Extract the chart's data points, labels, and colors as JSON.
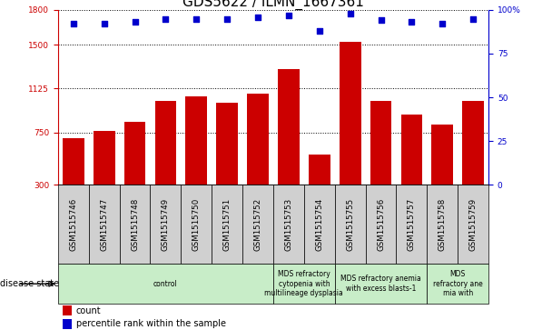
{
  "title": "GDS5622 / ILMN_1667361",
  "samples": [
    "GSM1515746",
    "GSM1515747",
    "GSM1515748",
    "GSM1515749",
    "GSM1515750",
    "GSM1515751",
    "GSM1515752",
    "GSM1515753",
    "GSM1515754",
    "GSM1515755",
    "GSM1515756",
    "GSM1515757",
    "GSM1515758",
    "GSM1515759"
  ],
  "counts": [
    700,
    760,
    840,
    1020,
    1060,
    1000,
    1080,
    1290,
    560,
    1530,
    1020,
    900,
    820,
    1020
  ],
  "percentiles": [
    92,
    92,
    93,
    95,
    95,
    95,
    96,
    97,
    88,
    98,
    94,
    93,
    92,
    95
  ],
  "bar_color": "#cc0000",
  "dot_color": "#0000cc",
  "ylim_left": [
    300,
    1800
  ],
  "yticks_left": [
    300,
    750,
    1125,
    1500,
    1800
  ],
  "ylim_right": [
    0,
    100
  ],
  "yticks_right": [
    0,
    25,
    50,
    75,
    100
  ],
  "ylabel_left_color": "#cc0000",
  "ylabel_right_color": "#0000cc",
  "background_color": "#ffffff",
  "group_boundaries": [
    {
      "start": 0,
      "end": 7,
      "label": "control"
    },
    {
      "start": 7,
      "end": 9,
      "label": "MDS refractory\ncytopenia with\nmultilineage dysplasia"
    },
    {
      "start": 9,
      "end": 12,
      "label": "MDS refractory anemia\nwith excess blasts-1"
    },
    {
      "start": 12,
      "end": 14,
      "label": "MDS\nrefractory ane\nmia with"
    }
  ],
  "legend_count_label": "count",
  "legend_pct_label": "percentile rank within the sample",
  "disease_state_label": "disease state",
  "title_fontsize": 11,
  "tick_fontsize": 6.5,
  "sample_box_color": "#d0d0d0",
  "disease_box_color": "#c8edc8"
}
